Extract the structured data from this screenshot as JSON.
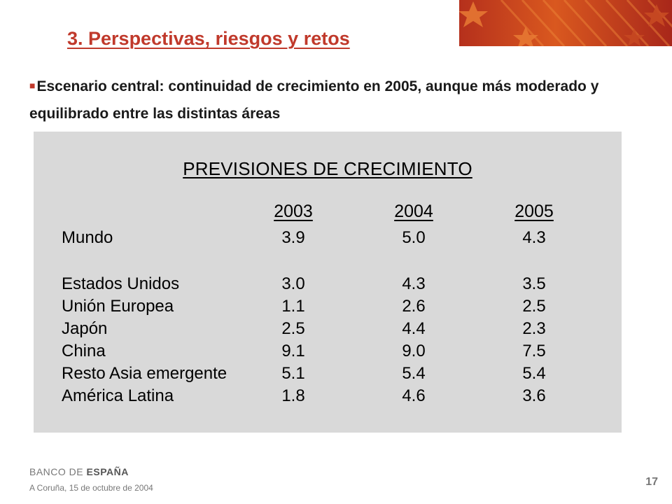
{
  "slide": {
    "title": "3. Perspectivas, riesgos y retos",
    "bullet_text": "Escenario central: continuidad de crecimiento en 2005, aunque más moderado y equilibrado entre las distintas áreas",
    "bullet_marker": "■"
  },
  "table": {
    "title": "PREVISIONES DE CRECIMIENTO",
    "years": [
      "2003",
      "2004",
      "2005"
    ],
    "rows": [
      {
        "label": "Mundo",
        "values": [
          "3.9",
          "5.0",
          "4.3"
        ]
      },
      {
        "label": "Estados Unidos",
        "values": [
          "3.0",
          "4.3",
          "3.5"
        ]
      },
      {
        "label": "Unión Europea",
        "values": [
          "1.1",
          "2.6",
          "2.5"
        ]
      },
      {
        "label": "Japón",
        "values": [
          "2.5",
          "4.4",
          "2.3"
        ]
      },
      {
        "label": "China",
        "values": [
          "9.1",
          "9.0",
          "7.5"
        ]
      },
      {
        "label": "Resto Asia emergente",
        "values": [
          "5.1",
          "5.4",
          "5.4"
        ]
      },
      {
        "label": "América Latina",
        "values": [
          "1.8",
          "4.6",
          "3.6"
        ]
      }
    ]
  },
  "footer": {
    "logo_part1": "BANCO DE ",
    "logo_part2": "ESPAÑA",
    "date": "A Coruña,  15  de octubre de  2004",
    "page_number": "17"
  },
  "colors": {
    "accent": "#c0392b",
    "panel_bg": "#d9d9d9"
  }
}
